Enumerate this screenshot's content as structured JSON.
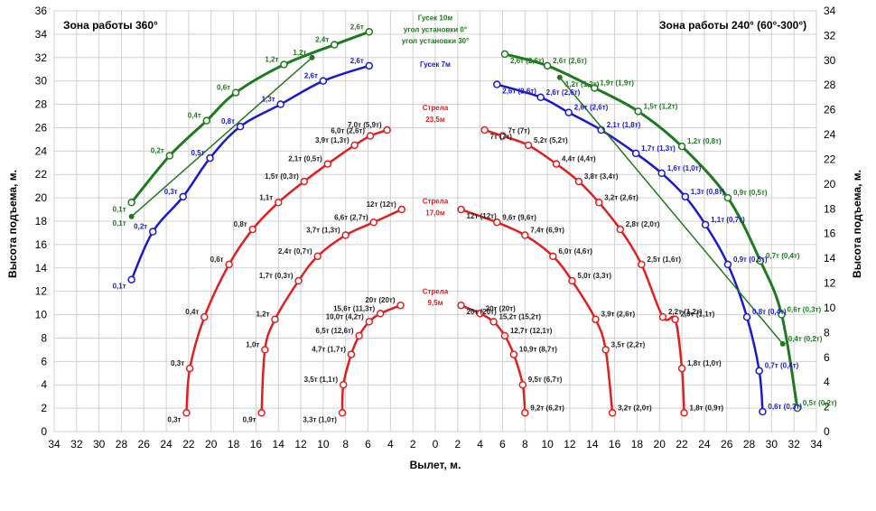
{
  "chart_data": {
    "type": "line",
    "title_left": "Зона работы 360°",
    "title_right": "Зона работы 240° (60°-300°)",
    "xlabel": "Вылет, м.",
    "ylabel_left": "Высота подъема, м.",
    "ylabel_right": "Высота подъема, м.",
    "xlim": [
      -34,
      34
    ],
    "ylim_left": [
      0,
      36
    ],
    "ylim_right": [
      0,
      34
    ],
    "x_ticks": [
      "34",
      "32",
      "30",
      "28",
      "26",
      "24",
      "22",
      "20",
      "18",
      "16",
      "14",
      "12",
      "10",
      "8",
      "6",
      "4",
      "2",
      "0",
      "2",
      "4",
      "6",
      "8",
      "10",
      "12",
      "14",
      "16",
      "18",
      "20",
      "22",
      "24",
      "26",
      "28",
      "30",
      "32",
      "34"
    ],
    "y_ticks_left": [
      "0",
      "2",
      "4",
      "6",
      "8",
      "10",
      "12",
      "14",
      "16",
      "18",
      "20",
      "22",
      "24",
      "26",
      "28",
      "30",
      "32",
      "34",
      "36"
    ],
    "y_ticks_right": [
      "0",
      "2",
      "4",
      "6",
      "8",
      "10",
      "12",
      "14",
      "16",
      "18",
      "20",
      "22",
      "24",
      "26",
      "28",
      "30",
      "32",
      "34"
    ],
    "grid": true,
    "colors": {
      "jib10": "#1e7a1e",
      "jib7": "#1a1acc",
      "boom": "#e02020",
      "grid": "#d0d0d0"
    },
    "annotations": [
      {
        "text": "Гусек 10м",
        "x": 0,
        "y": 35.2,
        "color": "#1e7a1e"
      },
      {
        "text": "угол установки 0°",
        "x": 0,
        "y": 34.2,
        "color": "#1e7a1e"
      },
      {
        "text": "угол установки 30°",
        "x": 0,
        "y": 33.2,
        "color": "#1e7a1e"
      },
      {
        "text": "Гусек 7м",
        "x": 0,
        "y": 31.2,
        "color": "#1a1acc"
      },
      {
        "text": "Стрела",
        "x": 0,
        "y": 27.5,
        "color": "#e02020"
      },
      {
        "text": "23,5м",
        "x": 0,
        "y": 26.5,
        "color": "#e02020"
      },
      {
        "text": "Стрела",
        "x": 0,
        "y": 19.5,
        "color": "#e02020"
      },
      {
        "text": "17,0м",
        "x": 0,
        "y": 18.5,
        "color": "#e02020"
      },
      {
        "text": "Стрела",
        "x": 0,
        "y": 11.8,
        "color": "#e02020"
      },
      {
        "text": "9,5м",
        "x": 0,
        "y": 10.8,
        "color": "#e02020"
      }
    ],
    "series": [
      {
        "side": "left",
        "color": "#e02020",
        "width": 2.5,
        "marker": "circle",
        "points": [
          {
            "x": -8.3,
            "y": 1.6,
            "label": "3,3т (1,0т)"
          },
          {
            "x": -8.2,
            "y": 4.0,
            "label": "3,5т (1,1т)"
          },
          {
            "x": -7.5,
            "y": 6.6,
            "label": "4,7т (1,7т)"
          },
          {
            "x": -6.8,
            "y": 8.2,
            "label": "6,5т (12,6т)"
          },
          {
            "x": -5.9,
            "y": 9.4,
            "label": "10,0т (4,2т)"
          },
          {
            "x": -4.9,
            "y": 10.1,
            "label": "15,6т (11,3т)"
          },
          {
            "x": -3.1,
            "y": 10.8,
            "label": "20т (20т)"
          }
        ]
      },
      {
        "side": "right",
        "color": "#e02020",
        "width": 2.5,
        "marker": "circle",
        "points": [
          {
            "x": 2.3,
            "y": 10.8,
            "label": "20т (20т)"
          },
          {
            "x": 4.0,
            "y": 10.1,
            "label": "20т (20т)"
          },
          {
            "x": 5.2,
            "y": 9.4,
            "label": "15,2т (15,2т)"
          },
          {
            "x": 6.2,
            "y": 8.2,
            "label": "12,7т (12,1т)"
          },
          {
            "x": 7.0,
            "y": 6.6,
            "label": "10,9т (8,7т)"
          },
          {
            "x": 7.8,
            "y": 4.0,
            "label": "9,5т (6,7т)"
          },
          {
            "x": 8.0,
            "y": 1.6,
            "label": "9,2т (6,2т)"
          }
        ]
      },
      {
        "side": "left",
        "color": "#e02020",
        "width": 2.5,
        "marker": "circle",
        "points": [
          {
            "x": -15.5,
            "y": 1.6,
            "label": "0,9т"
          },
          {
            "x": -15.2,
            "y": 7.0,
            "label": "1,0т"
          },
          {
            "x": -14.3,
            "y": 9.6,
            "label": "1,2т"
          },
          {
            "x": -12.2,
            "y": 12.9,
            "label": "1,7т (0,3т)"
          },
          {
            "x": -10.5,
            "y": 15.0,
            "label": "2,4т (0,7т)"
          },
          {
            "x": -8.0,
            "y": 16.8,
            "label": "3,7т (1,3т)"
          },
          {
            "x": -5.5,
            "y": 17.9,
            "label": "6,6т (2,7т)"
          },
          {
            "x": -3.0,
            "y": 19.0,
            "label": "12т (12т)"
          }
        ]
      },
      {
        "side": "right",
        "color": "#e02020",
        "width": 2.5,
        "marker": "circle",
        "points": [
          {
            "x": 2.3,
            "y": 19.0,
            "label": "12т (12т)"
          },
          {
            "x": 5.5,
            "y": 17.9,
            "label": "9,6т (9,6т)"
          },
          {
            "x": 8.0,
            "y": 16.8,
            "label": "7,4т (6,9т)"
          },
          {
            "x": 10.5,
            "y": 15.0,
            "label": "6,0т (4,6т)"
          },
          {
            "x": 12.2,
            "y": 12.9,
            "label": "5,0т (3,3т)"
          },
          {
            "x": 14.3,
            "y": 9.6,
            "label": "3,9т (2,6т)"
          },
          {
            "x": 15.2,
            "y": 7.0,
            "label": "3,5т (2,2т)"
          },
          {
            "x": 15.8,
            "y": 1.6,
            "label": "3,2т (2,0т)"
          }
        ]
      },
      {
        "side": "left",
        "color": "#e02020",
        "width": 2.5,
        "marker": "circle",
        "points": [
          {
            "x": -22.2,
            "y": 1.6,
            "label": "0,3т"
          },
          {
            "x": -21.9,
            "y": 5.4,
            "label": "0,3т"
          },
          {
            "x": -20.6,
            "y": 9.8,
            "label": "0,4т"
          },
          {
            "x": -18.4,
            "y": 14.3,
            "label": "0,6т"
          },
          {
            "x": -16.3,
            "y": 17.3,
            "label": "0,8т"
          },
          {
            "x": -14.0,
            "y": 19.6,
            "label": "1,1т"
          },
          {
            "x": -11.7,
            "y": 21.4,
            "label": "1,5т (0,3т)"
          },
          {
            "x": -9.6,
            "y": 22.9,
            "label": "2,1т (0,5т)"
          },
          {
            "x": -7.2,
            "y": 24.5,
            "label": "3,9т (1,3т)"
          },
          {
            "x": -5.8,
            "y": 25.3,
            "label": "6,0т (2,6т)"
          },
          {
            "x": -4.3,
            "y": 25.8,
            "label": "7,0т (5,9т)"
          }
        ]
      },
      {
        "side": "right",
        "color": "#e02020",
        "width": 2.5,
        "marker": "circle",
        "points": [
          {
            "x": 4.4,
            "y": 25.8,
            "label": "7т (7т)"
          },
          {
            "x": 6.0,
            "y": 25.3,
            "label": "7т (7т)"
          },
          {
            "x": 8.3,
            "y": 24.5,
            "label": "5,2т (5,2т)"
          },
          {
            "x": 10.8,
            "y": 22.9,
            "label": "4,4т (4,4т)"
          },
          {
            "x": 12.8,
            "y": 21.4,
            "label": "3,8т (3,4т)"
          },
          {
            "x": 14.6,
            "y": 19.6,
            "label": "3,2т (2,6т)"
          },
          {
            "x": 16.5,
            "y": 17.3,
            "label": "2,8т (2,0т)"
          },
          {
            "x": 18.4,
            "y": 14.3,
            "label": "2,5т (1,6т)"
          },
          {
            "x": 20.3,
            "y": 9.8,
            "label": "2,2т (1,2т)"
          },
          {
            "x": 21.4,
            "y": 9.6,
            "label": "2,0т (1,1т)"
          },
          {
            "x": 22.0,
            "y": 5.4,
            "label": "1,8т (1,0т)"
          },
          {
            "x": 22.2,
            "y": 1.6,
            "label": "1,8т (0,9т)"
          }
        ]
      },
      {
        "side": "left",
        "color": "#1a1acc",
        "width": 2.5,
        "marker": "circle",
        "points": [
          {
            "x": -27.1,
            "y": 13.0,
            "label": "0,1т"
          },
          {
            "x": -25.2,
            "y": 17.1,
            "label": "0,2т"
          },
          {
            "x": -22.5,
            "y": 20.1,
            "label": "0,3т"
          },
          {
            "x": -20.1,
            "y": 23.4,
            "label": "0,5т"
          },
          {
            "x": -17.4,
            "y": 26.1,
            "label": "0,8т"
          },
          {
            "x": -13.8,
            "y": 28.0,
            "label": "1,3т"
          },
          {
            "x": -10.0,
            "y": 30.0,
            "label": "2,6т"
          },
          {
            "x": -5.9,
            "y": 31.3,
            "label": "2,6т"
          }
        ]
      },
      {
        "side": "right",
        "color": "#1a1acc",
        "width": 2.5,
        "marker": "circle",
        "points": [
          {
            "x": 5.5,
            "y": 29.7,
            "label": "2,6т (2,6т)"
          },
          {
            "x": 9.4,
            "y": 28.6,
            "label": "2,6т (2,6т)"
          },
          {
            "x": 11.9,
            "y": 27.3,
            "label": "2,6т (2,6т)"
          },
          {
            "x": 14.8,
            "y": 25.8,
            "label": "2,1т (1,8т)"
          },
          {
            "x": 17.9,
            "y": 23.8,
            "label": "1,7т (1,3т)"
          },
          {
            "x": 20.2,
            "y": 22.1,
            "label": "1,6т (1,0т)"
          },
          {
            "x": 22.3,
            "y": 20.1,
            "label": "1,3т (0,8т)"
          },
          {
            "x": 24.1,
            "y": 17.7,
            "label": "1,1т (0,7т)"
          },
          {
            "x": 26.1,
            "y": 14.3,
            "label": "0,9т (0,5т)"
          },
          {
            "x": 27.8,
            "y": 9.8,
            "label": "0,8т (0,4т)"
          },
          {
            "x": 28.9,
            "y": 5.2,
            "label": "0,7т (0,4т)"
          },
          {
            "x": 29.2,
            "y": 1.7,
            "label": "0,6т (0,3т)"
          }
        ]
      },
      {
        "side": "left",
        "color": "#1e7a1e",
        "width": 3,
        "marker": "circle",
        "points": [
          {
            "x": -27.1,
            "y": 19.6,
            "label": "0,1т"
          },
          {
            "x": -23.7,
            "y": 23.6,
            "label": "0,2т"
          },
          {
            "x": -20.4,
            "y": 26.6,
            "label": "0,4т"
          },
          {
            "x": -17.8,
            "y": 29.0,
            "label": "0,6т"
          },
          {
            "x": -13.5,
            "y": 31.4,
            "label": "1,2т"
          },
          {
            "x": -9.0,
            "y": 33.1,
            "label": "2,4т"
          },
          {
            "x": -5.9,
            "y": 34.2,
            "label": "2,6т"
          }
        ]
      },
      {
        "side": "left",
        "color": "#1e7a1e",
        "width": 1.5,
        "marker": "dot",
        "points": [
          {
            "x": -27.1,
            "y": 18.4,
            "label": "0,1т"
          },
          {
            "x": -11.0,
            "y": 32.0,
            "label": "1,2т"
          }
        ]
      },
      {
        "side": "right",
        "color": "#1e7a1e",
        "width": 3,
        "marker": "circle",
        "points": [
          {
            "x": 6.2,
            "y": 32.3,
            "label": "2,6т (2,6т)"
          },
          {
            "x": 10.0,
            "y": 31.3,
            "label": "2,6т (2,6т)"
          },
          {
            "x": 14.2,
            "y": 29.4,
            "label": "1,9т (1,9т)"
          },
          {
            "x": 18.1,
            "y": 27.4,
            "label": "1,5т (1,2т)"
          },
          {
            "x": 22.0,
            "y": 24.4,
            "label": "1,2т (0,8т)"
          },
          {
            "x": 26.1,
            "y": 20.0,
            "label": "0,9т (0,5т)"
          },
          {
            "x": 29.0,
            "y": 14.6,
            "label": "0,7т (0,4т)"
          },
          {
            "x": 30.9,
            "y": 10.0,
            "label": "0,6т (0,3т)"
          },
          {
            "x": 32.3,
            "y": 2.0,
            "label": "0,5т (0,2т)"
          }
        ]
      },
      {
        "side": "right",
        "color": "#1e7a1e",
        "width": 1.5,
        "marker": "dot",
        "points": [
          {
            "x": 11.1,
            "y": 30.3,
            "label": "1,2т (1,2т)"
          },
          {
            "x": 31.0,
            "y": 7.5,
            "label": "0,4т (0,2т)"
          }
        ]
      }
    ]
  }
}
